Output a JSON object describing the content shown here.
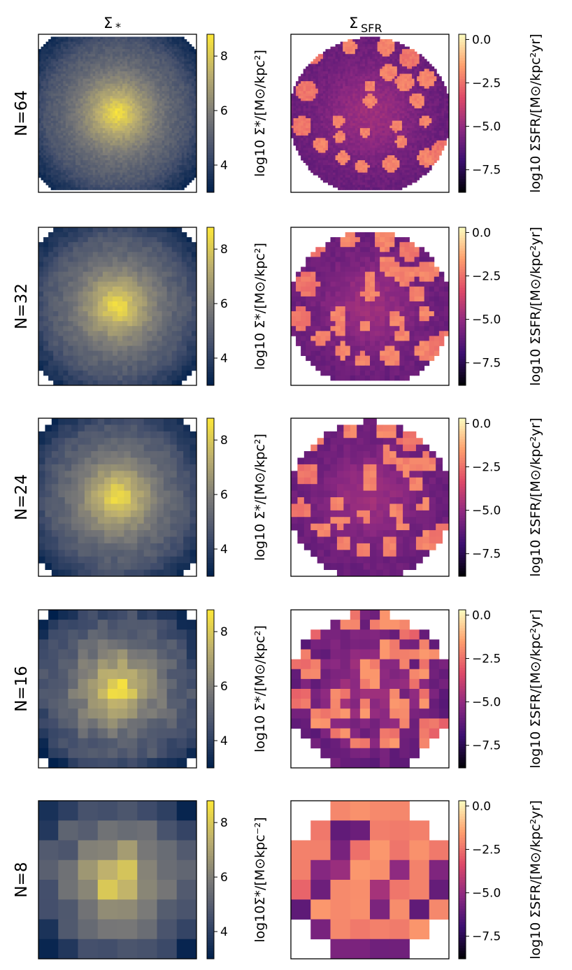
{
  "chart_data": {
    "type": "heatmap",
    "title": "",
    "column_titles": [
      "Σ*",
      "ΣSFR"
    ],
    "column_title_parts": [
      {
        "base": "Σ",
        "sub": "*"
      },
      {
        "base": "Σ",
        "sub": "SFR"
      }
    ],
    "rows": [
      {
        "label": "N=64",
        "grid": 64
      },
      {
        "label": "N=32",
        "grid": 32
      },
      {
        "label": "N=24",
        "grid": 24
      },
      {
        "label": "N=16",
        "grid": 16
      },
      {
        "label": "N=8",
        "grid": 8
      }
    ],
    "stellar_panels": {
      "colormap": "cividis",
      "colors": [
        "#00204c",
        "#414d6b",
        "#7c7b78",
        "#bcaf6f",
        "#fee838"
      ],
      "clim": [
        3.0,
        8.8
      ],
      "ticks": [
        4,
        6,
        8
      ],
      "tick_labels": [
        "4",
        "6",
        "8"
      ],
      "colorbar_label": "log10 Σ*/[M⊙/kpc²]",
      "colorbar_label_last": "log10Σ*/[M⊙kpc⁻²]",
      "center_value": 8.6,
      "edge_value": 4.2
    },
    "sfr_panels": {
      "colormap": "magma",
      "colors": [
        "#000004",
        "#3b0f70",
        "#8c2981",
        "#de4968",
        "#fe9f6d",
        "#fcfdbf"
      ],
      "clim": [
        -8.8,
        0.3
      ],
      "ticks": [
        0.0,
        -2.5,
        -5.0,
        -7.5
      ],
      "tick_labels": [
        "0.0",
        "−2.5",
        "−5.0",
        "−7.5"
      ],
      "colorbar_label": "log10 ΣSFR/[M⊙/kpc²yr]",
      "background_value": -6.0,
      "clump_value": -2.4
    }
  }
}
